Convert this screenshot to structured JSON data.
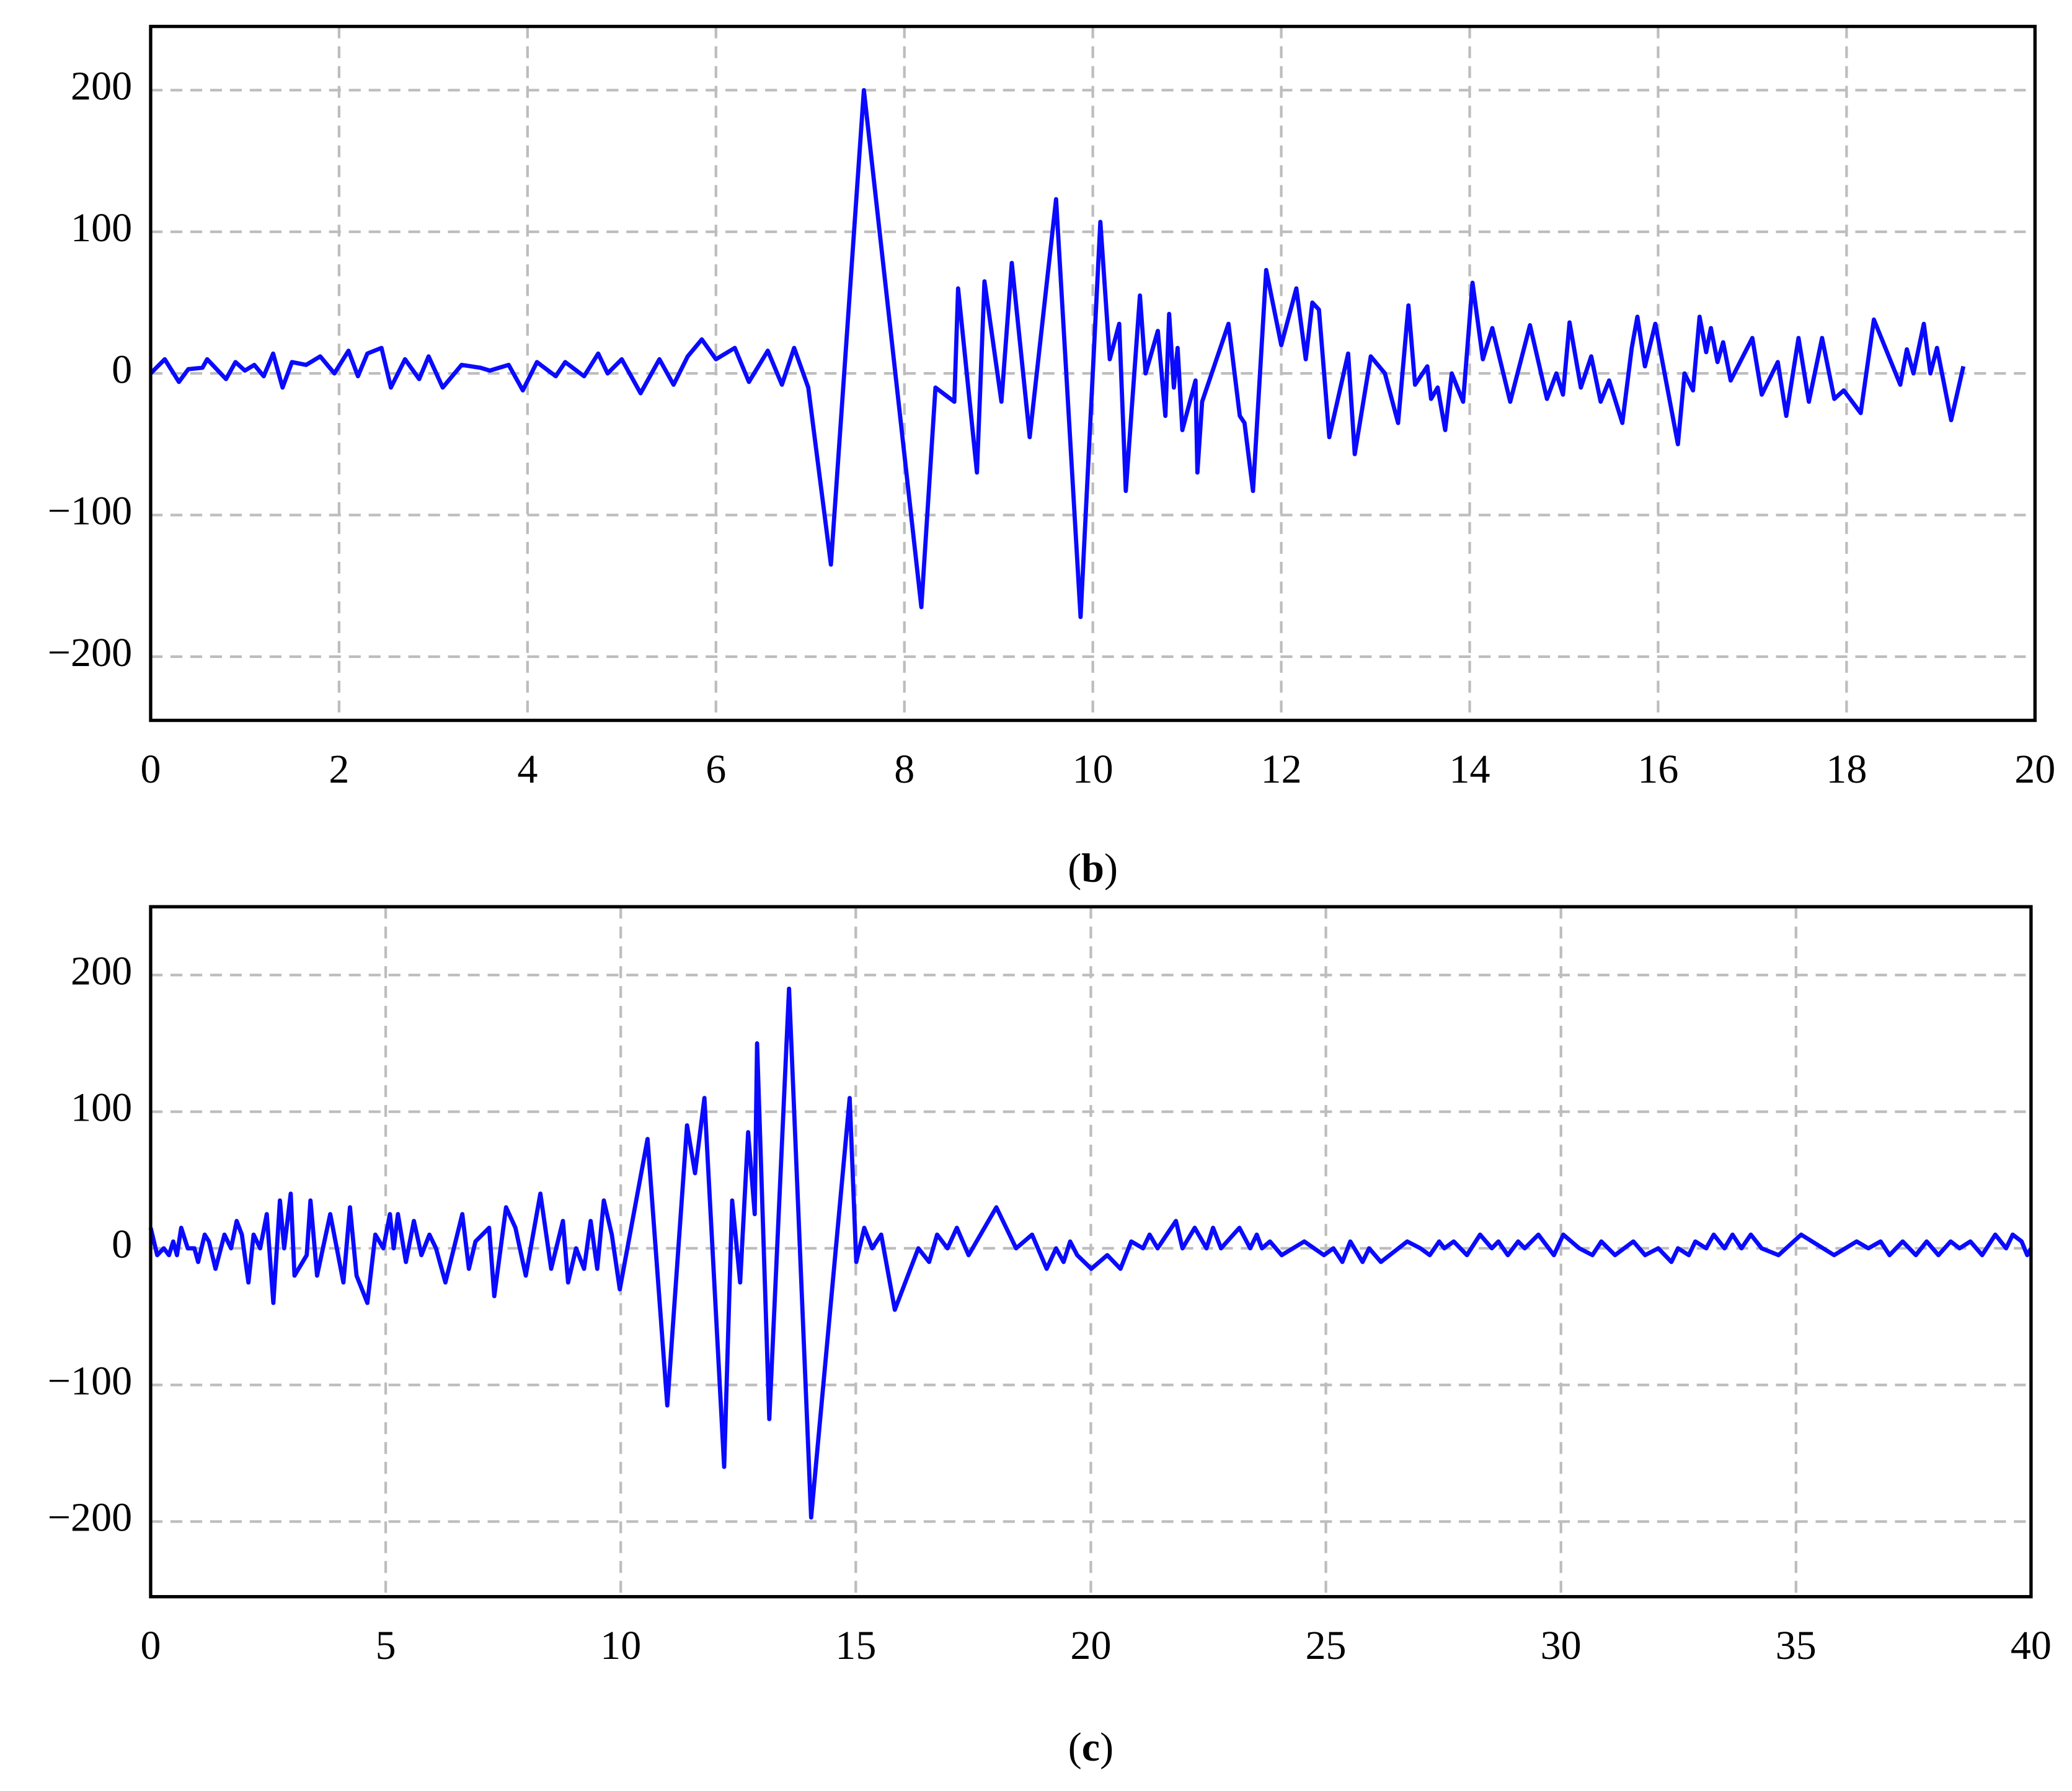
{
  "chart_data": [
    {
      "type": "line",
      "caption": "(b)",
      "color": "#0a0aff",
      "xlim": [
        0,
        20
      ],
      "ylim": [
        -245,
        245
      ],
      "xticks": [
        0,
        2,
        4,
        6,
        8,
        10,
        12,
        14,
        16,
        18,
        20
      ],
      "yticks": [
        {
          "value": -200,
          "label": "−200"
        },
        {
          "value": -100,
          "label": "−100"
        },
        0,
        100,
        200
      ],
      "grid": true,
      "x": [
        0,
        0.15,
        0.3,
        0.4,
        0.55,
        0.6,
        0.8,
        0.9,
        1.0,
        1.1,
        1.2,
        1.3,
        1.4,
        1.5,
        1.65,
        1.8,
        1.95,
        2.1,
        2.2,
        2.3,
        2.45,
        2.55,
        2.7,
        2.85,
        2.95,
        3.1,
        3.3,
        3.5,
        3.6,
        3.8,
        3.95,
        4.1,
        4.3,
        4.4,
        4.6,
        4.75,
        4.85,
        5.0,
        5.2,
        5.4,
        5.55,
        5.7,
        5.85,
        6.0,
        6.2,
        6.35,
        6.55,
        6.7,
        6.83,
        6.98,
        7.22,
        7.57,
        8.18,
        8.33,
        8.53,
        8.57,
        8.77,
        8.85,
        9.03,
        9.14,
        9.33,
        9.61,
        9.87,
        10.08,
        10.18,
        10.28,
        10.35,
        10.5,
        10.56,
        10.69,
        10.77,
        10.81,
        10.86,
        10.9,
        10.95,
        11.09,
        11.11,
        11.16,
        11.44,
        11.56,
        11.61,
        11.7,
        11.84,
        12.0,
        12.16,
        12.26,
        12.33,
        12.4,
        12.51,
        12.71,
        12.78,
        12.95,
        13.1,
        13.24,
        13.35,
        13.42,
        13.55,
        13.59,
        13.66,
        13.74,
        13.81,
        13.93,
        14.03,
        14.14,
        14.24,
        14.43,
        14.64,
        14.82,
        14.92,
        14.99,
        15.06,
        15.18,
        15.29,
        15.39,
        15.48,
        15.62,
        15.72,
        15.78,
        15.86,
        15.97,
        16.21,
        16.28,
        16.37,
        16.44,
        16.51,
        16.56,
        16.63,
        16.69,
        16.77,
        17.0,
        17.1,
        17.27,
        17.36,
        17.49,
        17.6,
        17.74,
        17.87,
        17.97,
        18.15,
        18.29,
        18.57,
        18.64,
        18.71,
        18.82,
        18.89,
        18.96,
        19.11,
        19.24
      ],
      "values": [
        0,
        10,
        -6,
        3,
        4,
        10,
        -4,
        8,
        2,
        6,
        -2,
        14,
        -10,
        8,
        6,
        12,
        0,
        16,
        -2,
        14,
        18,
        -10,
        10,
        -4,
        12,
        -10,
        6,
        4,
        2,
        6,
        -12,
        8,
        -2,
        8,
        -2,
        14,
        0,
        10,
        -14,
        10,
        -8,
        12,
        24,
        10,
        18,
        -6,
        16,
        -8,
        18,
        -10,
        -135,
        200,
        -165,
        -10,
        -20,
        60,
        -70,
        65,
        -20,
        78,
        -45,
        123,
        -172,
        107,
        10,
        35,
        -83,
        55,
        0,
        30,
        -30,
        42,
        -10,
        18,
        -40,
        -5,
        -70,
        -20,
        35,
        -30,
        -35,
        -83,
        73,
        20,
        60,
        10,
        50,
        45,
        -45,
        14,
        -57,
        12,
        0,
        -35,
        48,
        -8,
        5,
        -18,
        -10,
        -40,
        0,
        -20,
        64,
        10,
        32,
        -20,
        34,
        -18,
        0,
        -15,
        36,
        -10,
        12,
        -20,
        -5,
        -35,
        18,
        40,
        5,
        35,
        -50,
        0,
        -12,
        40,
        15,
        32,
        8,
        22,
        -5,
        25,
        -15,
        8,
        -30,
        25,
        -20,
        25,
        -18,
        -12,
        -28,
        38,
        -8,
        17,
        0,
        35,
        0,
        18,
        -33,
        5
      ]
    },
    {
      "type": "line",
      "caption": "(c)",
      "color": "#0a0aff",
      "xlim": [
        0,
        40
      ],
      "ylim": [
        -255,
        250
      ],
      "xticks": [
        0,
        5,
        10,
        15,
        20,
        25,
        30,
        35,
        40
      ],
      "yticks": [
        {
          "value": -200,
          "label": "−200"
        },
        {
          "value": -100,
          "label": "−100"
        },
        0,
        100,
        200
      ],
      "grid": true,
      "x": [
        0,
        0.14,
        0.28,
        0.39,
        0.48,
        0.56,
        0.65,
        0.79,
        0.93,
        1.01,
        1.15,
        1.24,
        1.38,
        1.57,
        1.71,
        1.83,
        1.94,
        2.08,
        2.19,
        2.33,
        2.47,
        2.61,
        2.75,
        2.84,
        2.98,
        3.06,
        3.32,
        3.4,
        3.54,
        3.82,
        3.96,
        4.1,
        4.24,
        4.38,
        4.61,
        4.78,
        4.95,
        5.09,
        5.17,
        5.26,
        5.43,
        5.6,
        5.76,
        5.93,
        6.07,
        6.27,
        6.63,
        6.77,
        6.91,
        7.2,
        7.31,
        7.56,
        7.76,
        7.98,
        8.29,
        8.52,
        8.77,
        8.88,
        9.05,
        9.22,
        9.36,
        9.5,
        9.64,
        9.81,
        9.98,
        10.57,
        10.99,
        11.41,
        11.58,
        11.78,
        12.2,
        12.37,
        12.54,
        12.71,
        12.85,
        12.9,
        13.16,
        13.58,
        14.05,
        14.87,
        15.01,
        15.18,
        15.35,
        15.54,
        15.83,
        16.33,
        16.56,
        16.73,
        16.95,
        17.15,
        17.4,
        17.99,
        18.41,
        18.75,
        19.06,
        19.26,
        19.42,
        19.56,
        19.71,
        20.01,
        20.35,
        20.63,
        20.86,
        21.11,
        21.25,
        21.42,
        21.81,
        21.95,
        22.21,
        22.46,
        22.6,
        22.77,
        23.16,
        23.39,
        23.53,
        23.64,
        23.81,
        24.06,
        24.54,
        24.96,
        25.16,
        25.35,
        25.52,
        25.78,
        25.92,
        26.17,
        26.73,
        27.01,
        27.21,
        27.41,
        27.52,
        27.72,
        28.0,
        28.28,
        28.53,
        28.67,
        28.87,
        29.09,
        29.23,
        29.52,
        29.85,
        30.05,
        30.39,
        30.67,
        30.86,
        31.15,
        31.54,
        31.79,
        32.07,
        32.35,
        32.49,
        32.72,
        32.86,
        33.09,
        33.25,
        33.48,
        33.65,
        33.84,
        34.04,
        34.27,
        34.63,
        35.11,
        35.81,
        36.29,
        36.54,
        36.8,
        36.99,
        37.27,
        37.55,
        37.78,
        38.03,
        38.29,
        38.48,
        38.71,
        38.96,
        39.24,
        39.47,
        39.61,
        39.8,
        39.92,
        40.0
      ],
      "values": [
        15,
        -5,
        0,
        -5,
        5,
        -5,
        15,
        0,
        0,
        -10,
        10,
        5,
        -15,
        10,
        0,
        20,
        10,
        -25,
        10,
        0,
        25,
        -40,
        35,
        0,
        40,
        -20,
        -5,
        35,
        -20,
        25,
        0,
        -25,
        30,
        -20,
        -40,
        10,
        0,
        25,
        0,
        25,
        -10,
        20,
        -5,
        10,
        0,
        -25,
        25,
        -15,
        5,
        15,
        -35,
        30,
        15,
        -20,
        40,
        -15,
        20,
        -25,
        0,
        -15,
        20,
        -15,
        35,
        10,
        -30,
        80,
        -115,
        90,
        55,
        110,
        -160,
        35,
        -25,
        85,
        25,
        150,
        -125,
        190,
        -197,
        110,
        -10,
        15,
        0,
        10,
        -45,
        0,
        -10,
        10,
        0,
        15,
        -5,
        30,
        0,
        10,
        -15,
        0,
        -10,
        5,
        -5,
        -15,
        -5,
        -15,
        5,
        0,
        10,
        0,
        20,
        0,
        15,
        0,
        15,
        0,
        15,
        0,
        10,
        0,
        5,
        -5,
        5,
        -5,
        0,
        -10,
        5,
        -10,
        0,
        -10,
        5,
        0,
        -5,
        5,
        0,
        5,
        -5,
        10,
        0,
        5,
        -5,
        5,
        0,
        10,
        -5,
        10,
        0,
        -5,
        5,
        -5,
        5,
        -5,
        0,
        -10,
        0,
        -5,
        5,
        0,
        10,
        0,
        10,
        0,
        10,
        0,
        -5,
        10,
        -5,
        5,
        0,
        5,
        -5,
        5,
        -5,
        5,
        -5,
        5,
        0,
        5,
        -5,
        10,
        0,
        10,
        5,
        -5,
        0
      ]
    }
  ]
}
